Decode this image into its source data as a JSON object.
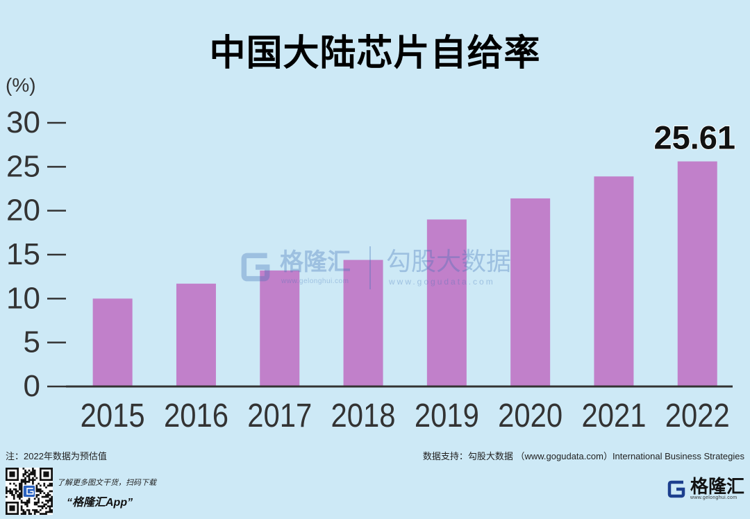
{
  "colors": {
    "background": "#cde9f6",
    "bar": "#c180ca",
    "axis": "#333333",
    "title": "#000000",
    "brand_blue": "#2a62c0",
    "logo_navy": "#1c3f8e",
    "watermark": "#3d6fb6"
  },
  "chart_data": {
    "type": "bar",
    "title": "中国大陆芯片自给率",
    "ylabel": "(%)",
    "categories": [
      "2015",
      "2016",
      "2017",
      "2018",
      "2019",
      "2020",
      "2021",
      "2022"
    ],
    "values": [
      10.0,
      11.7,
      13.2,
      14.4,
      19.0,
      21.4,
      23.9,
      25.61
    ],
    "value_labels": [
      null,
      null,
      null,
      null,
      null,
      null,
      null,
      "25.61"
    ],
    "ylim": [
      0,
      30
    ],
    "yticks": [
      0,
      5,
      10,
      15,
      20,
      25,
      30
    ],
    "grid": false
  },
  "footer": {
    "note": "注：2022年数据为预估值",
    "source": "数据支持：勾股大数据 （www.gogudata.com）International Business Strategies",
    "promo_line": "了解更多图文干货，扫码下载",
    "promo_app": "“格隆汇App”"
  },
  "icons": {
    "qr": "qr-code",
    "logo": "gelonghui-g-icon"
  },
  "logo": {
    "name": "格隆汇",
    "url": "www.gelonghui.com"
  },
  "watermark": {
    "brand_a": "格隆汇",
    "url_a": "www.gelonghui.com",
    "brand_b": "勾股大数据",
    "url_b": "www.gogudata.com"
  }
}
